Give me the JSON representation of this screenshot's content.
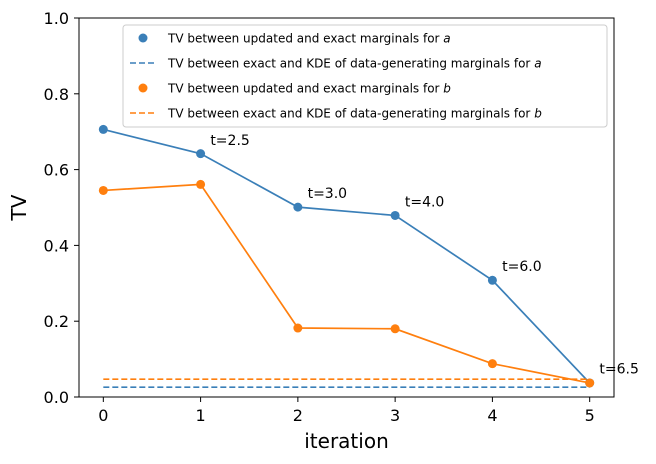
{
  "chart_data": {
    "type": "line",
    "xlabel": "iteration",
    "ylabel": "TV",
    "xlim": [
      -0.25,
      5.25
    ],
    "ylim": [
      0.0,
      1.0
    ],
    "xticks": [
      0,
      1,
      2,
      3,
      4,
      5
    ],
    "yticks": [
      0.0,
      0.2,
      0.4,
      0.6,
      0.8,
      1.0
    ],
    "xtick_labels": [
      "0",
      "1",
      "2",
      "3",
      "4",
      "5"
    ],
    "ytick_labels": [
      "0.0",
      "0.2",
      "0.4",
      "0.6",
      "0.8",
      "1.0"
    ],
    "grid": false,
    "legend_position": "top-right",
    "series": [
      {
        "name": "TV between updated and exact marginals for a",
        "legend_prefix": "TV between updated and exact marginals for ",
        "legend_var": "a",
        "kind": "line-marker",
        "color": "#3a7fb8",
        "x": [
          0,
          1,
          2,
          3,
          4,
          5
        ],
        "y": [
          0.706,
          0.642,
          0.501,
          0.479,
          0.308,
          0.037
        ]
      },
      {
        "name": "TV between exact and KDE of data-generating marginals for a",
        "legend_prefix": "TV between exact and KDE of data-generating marginals for ",
        "legend_var": "a",
        "kind": "hline-dashed",
        "color": "#3a7fb8",
        "y": 0.026
      },
      {
        "name": "TV between updated and exact marginals for b",
        "legend_prefix": "TV between updated and exact marginals for ",
        "legend_var": "b",
        "kind": "line-marker",
        "color": "#ff7f0e",
        "x": [
          0,
          1,
          2,
          3,
          4,
          5
        ],
        "y": [
          0.545,
          0.561,
          0.182,
          0.18,
          0.088,
          0.037
        ]
      },
      {
        "name": "TV between exact and KDE of data-generating marginals for b",
        "legend_prefix": "TV between exact and KDE of data-generating marginals for ",
        "legend_var": "b",
        "kind": "hline-dashed",
        "color": "#ff7f0e",
        "y": 0.047
      }
    ],
    "annotations": [
      {
        "text": "t=2.5",
        "x": 1.1,
        "y": 0.665
      },
      {
        "text": "t=3.0",
        "x": 2.1,
        "y": 0.525
      },
      {
        "text": "t=4.0",
        "x": 3.1,
        "y": 0.502
      },
      {
        "text": "t=6.0",
        "x": 4.1,
        "y": 0.333
      },
      {
        "text": "t=6.5",
        "x": 5.1,
        "y": 0.062
      }
    ]
  }
}
